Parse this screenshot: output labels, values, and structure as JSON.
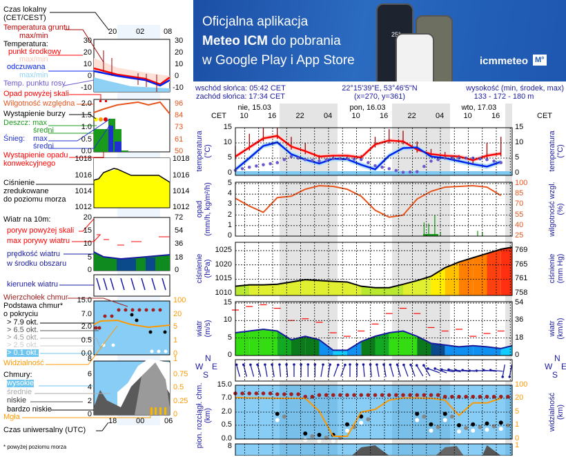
{
  "banner": {
    "line1": "Oficjalna aplikacja",
    "line2_bold": "Meteo ICM",
    "line2_rest": " do pobrania",
    "line3": "w Google Play i App Store",
    "logo": "icmmeteo",
    "logo_badge": "M°",
    "phone_temp": "25°"
  },
  "info": {
    "sunrise": "wschód słońca: 05:42 CET",
    "sunset": "zachód słońca: 17:34 CET",
    "coords": "22°15'39\"E, 53°46'5\"N",
    "grid": "(x=270,  y=361)",
    "elev_label": "wysokość (min, środek, max)",
    "elev_values": "133 - 172 - 180 m"
  },
  "days": [
    "nie, 15.03",
    "pon, 16.03",
    "wto, 17.03"
  ],
  "hours": [
    "10",
    "16",
    "22",
    "04",
    "10",
    "16",
    "22",
    "04",
    "10",
    "16"
  ],
  "tz": "CET",
  "axes": {
    "temp": {
      "title1": "temperatura",
      "title2": "(°C)",
      "ticks": [
        "15",
        "10",
        "5",
        "0"
      ]
    },
    "precip": {
      "title1": "opad",
      "title2": "(mm/h, kg/m²/h)",
      "ticks": [
        "5",
        "4",
        "3",
        "2",
        "1",
        "0"
      ],
      "rtitle1": "wilgotność wzgl.",
      "rtitle2": "(%)",
      "rticks": [
        "100",
        "85",
        "70",
        "55",
        "40",
        "25"
      ]
    },
    "pressure": {
      "title1": "ciśnienie",
      "title2": "(hPa)",
      "ticks": [
        "1025",
        "1020",
        "1015",
        "1010"
      ],
      "rtitle1": "ciśnienie",
      "rtitle2": "(mm Hg)",
      "rticks": [
        "769",
        "765",
        "761",
        "758"
      ]
    },
    "wind": {
      "title1": "wiatr",
      "title2": "(m/s)",
      "ticks": [
        "15",
        "10",
        "5",
        "0"
      ],
      "rtitle1": "wiatr",
      "rtitle2": "(km/h)",
      "rticks": [
        "54",
        "36",
        "18",
        "0"
      ]
    },
    "clouds": {
      "title1": "pion. rozciągł. chm.",
      "title2": "(km)",
      "ticks": [
        "15.0",
        "7.0",
        "2.0",
        "0.5",
        "0.0"
      ],
      "rtitle1": "widzialność",
      "rtitle2": "(km)",
      "rticks": [
        "100",
        "20",
        "5",
        "1",
        "0"
      ]
    },
    "cover": {
      "ticks": [
        "8"
      ],
      "rticks": [
        "1"
      ]
    },
    "compass": {
      "n": "N",
      "w": "W",
      "s": "S",
      "e": "E"
    }
  },
  "legend": {
    "local_time": "Czas lokalny",
    "local_time2": "(CET/CEST)",
    "top_hours": [
      "20",
      "02",
      "08"
    ],
    "ground_temp": "Temperatura gruntu",
    "ground_temp2": "max/min",
    "temperature": "Temperatura:",
    "mid": "punkt środkowy",
    "mid_mm": "max/min",
    "feel": "odczuwana",
    "feel_mm": "max/min",
    "dew": "Temp. punktu rosy",
    "temp_ticks": [
      "30",
      "20",
      "10",
      "0",
      "-10"
    ],
    "precip_over": "Opad powyżej skali",
    "humidity": "Wilgotność względna",
    "storm": "Wystąpienie burzy",
    "rain": "Deszcz: max",
    "rain_avg": "średni",
    "snow": "Śnieg:",
    "snow_max": "max",
    "snow_avg": "średni",
    "conv": "Wystąpienie opadu",
    "conv2": "konwekcyjnego",
    "precip_ticks": [
      "2.0",
      "1.5",
      "1.0",
      "0.5",
      "0.0"
    ],
    "hum_ticks": [
      "96",
      "84",
      "73",
      "61",
      "50"
    ],
    "pressure1": "Ciśnienie",
    "pressure2": "zredukowane",
    "pressure3": "do poziomu morza",
    "pres_ticks": [
      "1018",
      "1016",
      "1014",
      "1012"
    ],
    "wind10": "Wiatr na 10m:",
    "gust_over": "poryw powyżej skali",
    "gust_max": "max porywy wiatru",
    "wind_speed": "prędkość wiatru",
    "wind_speed2": "w środku obszaru",
    "wind_ticks": [
      "20",
      "15",
      "10",
      "5",
      "0"
    ],
    "wind_rticks": [
      "72",
      "54",
      "36",
      "18",
      "0"
    ],
    "wind_dir": "kierunek wiatru",
    "cloud_top": "Wierzchołek chmur",
    "cloud_base": "Podstawa chmur*",
    "cloud_base2": "o pokryciu",
    "okt": [
      "> 7.9 okt.",
      "> 6.5 okt.",
      "> 4.5 okt.",
      "> 2.5 okt.",
      "> 0.1 okt."
    ],
    "visibility": "Widzialność",
    "cloud_ticks": [
      "15.0",
      "7.0",
      "2.0",
      "0.5",
      "0.0"
    ],
    "vis_ticks": [
      "100",
      "20",
      "5",
      "1",
      "0"
    ],
    "clouds": "Chmury:",
    "high": "wysokie",
    "medium": "średnie",
    "low": "niskie",
    "very_low": "bardzo niskie",
    "fog": "Mgła",
    "cover_ticks": [
      "8",
      "6",
      "4",
      "2",
      "0"
    ],
    "cover_rticks": [
      "1",
      "0.75",
      "0.5",
      "0.25",
      "0"
    ],
    "utc_hours": [
      "18",
      "00",
      "06"
    ],
    "utc": "Czas uniwersalny (UTC)",
    "footnote": "* powyżej poziomu morza"
  },
  "colors": {
    "temp": "#ff0000",
    "feel": "#0022ee",
    "dew": "#6a5acd",
    "humidity": "#e8541c",
    "night": "#e4e4e4",
    "cloud_bg": "#87cdf5",
    "visibility": "#ff9900"
  },
  "chart_data": {
    "type": "line",
    "title": "Meteogram",
    "x_label": "CET",
    "hours_from_sun_0800": [
      0,
      3,
      6,
      9,
      12,
      15,
      18,
      21,
      24,
      27,
      30,
      33,
      36,
      39,
      42,
      45,
      48,
      51,
      54,
      57
    ],
    "series": [
      {
        "name": "temperatura (°C)",
        "values": [
          5.5,
          8.5,
          11.5,
          12.3,
          8.8,
          7.3,
          5.5,
          5.8,
          5.8,
          5.2,
          9.5,
          10.8,
          10.5,
          7.8,
          6.3,
          5.8,
          5.5,
          4.3,
          5.8,
          6.5
        ]
      },
      {
        "name": "temperatura odczuwana (°C)",
        "values": [
          1.2,
          5,
          9,
          10.2,
          6.3,
          4.5,
          3.2,
          4.8,
          4.6,
          2.8,
          1.3,
          5.8,
          8.3,
          8.5,
          5.5,
          5,
          4,
          3,
          2.2,
          3.8
        ]
      },
      {
        "name": "temperatura punktu rosy (°C)",
        "values": [
          1,
          2,
          2.8,
          3.5,
          5.5,
          4.5,
          4,
          4.8,
          4.8,
          4.5,
          2.5,
          1.5,
          0.3,
          0.5,
          4,
          5,
          5,
          5,
          4.5,
          3.5
        ]
      },
      {
        "name": "temperatura gruntu max (°C)",
        "values": [
          9,
          13,
          15,
          15,
          12,
          10,
          6,
          6,
          6,
          6,
          12,
          14.5,
          14,
          10.5,
          8,
          7,
          6,
          5.5,
          10,
          12
        ]
      },
      {
        "name": "wilgotność wzgl. (%)",
        "values": [
          79,
          68,
          59,
          80,
          82,
          92,
          97,
          96,
          92,
          82,
          62,
          52,
          55,
          78,
          89,
          95,
          96,
          97,
          95,
          83
        ]
      },
      {
        "name": "ciśnienie (hPa)",
        "values": [
          1012.5,
          1013,
          1013,
          1013.2,
          1014,
          1014.8,
          1014.5,
          1014.2,
          1014,
          1012.5,
          1012,
          1012,
          1013.2,
          1014.5,
          1016,
          1019,
          1021,
          1022.5,
          1024,
          1025.5
        ]
      },
      {
        "name": "wiatr (m/s)",
        "values": [
          6.5,
          7,
          7.5,
          7,
          4.5,
          5.5,
          4.5,
          1.5,
          1.5,
          4,
          5.5,
          6.5,
          7,
          5.5,
          3.5,
          3,
          2.5,
          2.8,
          2.5,
          2
        ]
      },
      {
        "name": "max porywy (m/s)",
        "values": [
          13,
          14,
          14.5,
          13.5,
          10,
          10.5,
          9.5,
          6.5,
          5.5,
          7,
          9,
          12,
          13.5,
          12,
          8,
          7,
          7.5,
          5.5,
          6.3,
          7
        ]
      },
      {
        "name": "kierunek wiatru (°)",
        "values": [
          165,
          165,
          170,
          175,
          180,
          180,
          190,
          200,
          180,
          175,
          170,
          165,
          160,
          150,
          110,
          100,
          95,
          90,
          95,
          10
        ]
      },
      {
        "name": "wierzchołek chmur (km)",
        "values": [
          10,
          10,
          10,
          9.5,
          9.5,
          8,
          9,
          9,
          9,
          9,
          9,
          9,
          9,
          9,
          9,
          8,
          8,
          8,
          8,
          8
        ]
      },
      {
        "name": "podstawa chmur (km)",
        "values": [
          null,
          null,
          null,
          1.8,
          null,
          0.2,
          0.15,
          0.15,
          0.6,
          1.5,
          null,
          null,
          null,
          1.8,
          0.6,
          1.8,
          0.5,
          0.6,
          0.7,
          0.8
        ]
      },
      {
        "name": "widzialność (km)",
        "values": [
          25,
          22,
          22,
          20,
          20,
          20,
          6,
          0.2,
          0.2,
          5,
          8,
          18,
          22,
          22,
          20,
          18,
          4,
          15,
          15,
          20
        ]
      }
    ],
    "precip_bars": [
      {
        "h": 40.5,
        "v": 1.3
      },
      {
        "h": 41.5,
        "v": 1.2
      },
      {
        "h": 42.8,
        "v": 2.0
      },
      {
        "h": 44,
        "v": 0.4
      },
      {
        "h": 52,
        "v": 0.5
      },
      {
        "h": 53,
        "v": 0.4
      }
    ],
    "ylim": {
      "temp": [
        0,
        15
      ],
      "precip": [
        0,
        5
      ],
      "humidity": [
        25,
        100
      ],
      "pressure": [
        1010,
        1027
      ],
      "wind": [
        0,
        15
      ]
    }
  }
}
